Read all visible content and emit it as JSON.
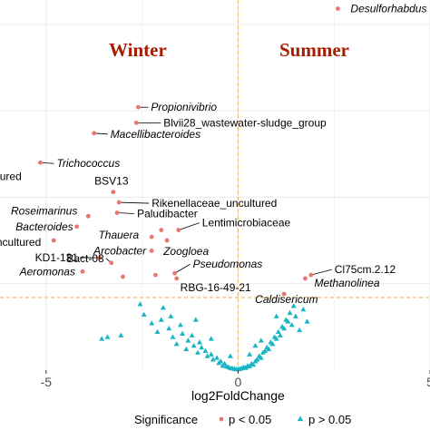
{
  "chart_data": {
    "type": "scatter",
    "xlabel": "log2FoldChange",
    "xlim": [
      -6.2,
      5.0
    ],
    "ylim": [
      0,
      10.7
    ],
    "x_ticks": [
      -5,
      0,
      5
    ],
    "vline_x": 0,
    "hline_y": 2.1,
    "annotations": [
      "Winter",
      "Summer"
    ],
    "legend": {
      "title": "Significance",
      "position": "bottom",
      "entries": [
        "p < 0.05",
        "p > 0.05"
      ]
    },
    "colors": {
      "sig": "#e8776c",
      "nonsig": "#19b5c5",
      "seasons": "#a61c00",
      "ref_lines": "#f3c36b",
      "grid": "#ebebeb"
    },
    "series": [
      {
        "name": "p < 0.05",
        "marker": "circle",
        "points": [
          {
            "x": 2.6,
            "y": 10.45,
            "label": "Desulforhabdus"
          },
          {
            "x": -2.6,
            "y": 7.6,
            "label": "Propionivibrio"
          },
          {
            "x": -2.65,
            "y": 7.15,
            "label": "Blvii28_wastewater-sludge_group"
          },
          {
            "x": -3.75,
            "y": 6.85,
            "label": "Macellibacteroides"
          },
          {
            "x": -5.15,
            "y": 6.0,
            "label": "Trichococcus"
          },
          {
            "x": -6.3,
            "y": 5.6,
            "label": "Chlorobiaceae_uncultured"
          },
          {
            "x": -3.25,
            "y": 5.15,
            "label": "BSV13"
          },
          {
            "x": -3.1,
            "y": 4.85,
            "label": "Rikenellaceae_uncultured"
          },
          {
            "x": -3.15,
            "y": 4.55,
            "label": "Paludibacter"
          },
          {
            "x": -3.9,
            "y": 4.45,
            "label": "Roseimarinus"
          },
          {
            "x": -4.2,
            "y": 4.15,
            "label": "Bacteroides"
          },
          {
            "x": -1.55,
            "y": 4.05,
            "label": "Lentimicrobiaceae"
          },
          {
            "x": -2.0,
            "y": 4.05,
            "label": ""
          },
          {
            "x": -2.25,
            "y": 3.85,
            "label": "Thauera"
          },
          {
            "x": -1.85,
            "y": 3.75,
            "label": "Zoogloea"
          },
          {
            "x": -4.8,
            "y": 3.75,
            "label": "Anaerolineaceae_uncultured"
          },
          {
            "x": -2.25,
            "y": 3.45,
            "label": "Arcobacter"
          },
          {
            "x": -3.6,
            "y": 3.25,
            "label": "KD1-131"
          },
          {
            "x": -3.3,
            "y": 3.1,
            "label": "Bact-08"
          },
          {
            "x": -4.05,
            "y": 2.85,
            "label": "Aeromonas"
          },
          {
            "x": -3.0,
            "y": 2.7,
            "label": ""
          },
          {
            "x": -2.15,
            "y": 2.75,
            "label": ""
          },
          {
            "x": -1.65,
            "y": 2.8,
            "label": "Pseudomonas"
          },
          {
            "x": -1.6,
            "y": 2.65,
            "label": "RBG-16-49-21"
          },
          {
            "x": 1.9,
            "y": 2.75,
            "label": "Cl75cm.2.12"
          },
          {
            "x": 1.75,
            "y": 2.65,
            "label": "Methanolinea"
          },
          {
            "x": 1.2,
            "y": 2.2,
            "label": "Caldisericum"
          }
        ]
      },
      {
        "name": "p > 0.05",
        "marker": "triangle",
        "points": [
          {
            "x": -3.4,
            "y": 0.95
          },
          {
            "x": -3.05,
            "y": 1.0
          },
          {
            "x": -3.55,
            "y": 0.9
          },
          {
            "x": -2.55,
            "y": 1.9
          },
          {
            "x": -2.45,
            "y": 1.6
          },
          {
            "x": -2.25,
            "y": 1.35
          },
          {
            "x": -2.1,
            "y": 1.1
          },
          {
            "x": -2.0,
            "y": 1.45
          },
          {
            "x": -1.95,
            "y": 1.8
          },
          {
            "x": -1.8,
            "y": 1.2
          },
          {
            "x": -1.75,
            "y": 1.55
          },
          {
            "x": -1.7,
            "y": 0.95
          },
          {
            "x": -1.6,
            "y": 0.75
          },
          {
            "x": -1.5,
            "y": 1.3
          },
          {
            "x": -1.45,
            "y": 1.05
          },
          {
            "x": -1.35,
            "y": 0.6
          },
          {
            "x": -1.3,
            "y": 0.85
          },
          {
            "x": -1.2,
            "y": 1.0
          },
          {
            "x": -1.15,
            "y": 0.7
          },
          {
            "x": -1.05,
            "y": 0.5
          },
          {
            "x": -1.0,
            "y": 0.8
          },
          {
            "x": -0.95,
            "y": 0.65
          },
          {
            "x": -0.85,
            "y": 0.55
          },
          {
            "x": -0.8,
            "y": 0.4
          },
          {
            "x": -0.7,
            "y": 0.45
          },
          {
            "x": -0.65,
            "y": 0.3
          },
          {
            "x": -0.55,
            "y": 0.35
          },
          {
            "x": -0.5,
            "y": 0.2
          },
          {
            "x": -0.45,
            "y": 0.25
          },
          {
            "x": -0.4,
            "y": 0.12
          },
          {
            "x": -0.35,
            "y": 0.18
          },
          {
            "x": -0.3,
            "y": 0.1
          },
          {
            "x": -0.25,
            "y": 0.08
          },
          {
            "x": -0.2,
            "y": 0.05
          },
          {
            "x": -0.15,
            "y": 0.05
          },
          {
            "x": -0.1,
            "y": 0.03
          },
          {
            "x": -0.05,
            "y": 0.02
          },
          {
            "x": 0.0,
            "y": 0.02
          },
          {
            "x": 0.05,
            "y": 0.03
          },
          {
            "x": 0.1,
            "y": 0.05
          },
          {
            "x": 0.15,
            "y": 0.08
          },
          {
            "x": 0.2,
            "y": 0.06
          },
          {
            "x": 0.25,
            "y": 0.12
          },
          {
            "x": 0.3,
            "y": 0.1
          },
          {
            "x": 0.35,
            "y": 0.18
          },
          {
            "x": 0.4,
            "y": 0.15
          },
          {
            "x": 0.45,
            "y": 0.25
          },
          {
            "x": 0.5,
            "y": 0.3
          },
          {
            "x": 0.55,
            "y": 0.4
          },
          {
            "x": 0.6,
            "y": 0.35
          },
          {
            "x": 0.65,
            "y": 0.5
          },
          {
            "x": 0.7,
            "y": 0.55
          },
          {
            "x": 0.75,
            "y": 0.65
          },
          {
            "x": 0.8,
            "y": 0.6
          },
          {
            "x": 0.85,
            "y": 0.8
          },
          {
            "x": 0.9,
            "y": 0.75
          },
          {
            "x": 0.95,
            "y": 0.95
          },
          {
            "x": 1.0,
            "y": 0.9
          },
          {
            "x": 1.05,
            "y": 1.1
          },
          {
            "x": 1.1,
            "y": 1.0
          },
          {
            "x": 1.15,
            "y": 1.25
          },
          {
            "x": 1.2,
            "y": 1.2
          },
          {
            "x": 1.25,
            "y": 1.45
          },
          {
            "x": 1.3,
            "y": 1.4
          },
          {
            "x": 1.35,
            "y": 1.65
          },
          {
            "x": 1.4,
            "y": 1.3
          },
          {
            "x": 1.45,
            "y": 1.85
          },
          {
            "x": 1.5,
            "y": 1.55
          },
          {
            "x": 1.6,
            "y": 1.15
          },
          {
            "x": 1.7,
            "y": 1.75
          },
          {
            "x": 1.8,
            "y": 1.4
          },
          {
            "x": 0.3,
            "y": 0.45
          },
          {
            "x": -0.2,
            "y": 0.4
          },
          {
            "x": 0.6,
            "y": 0.85
          },
          {
            "x": -0.7,
            "y": 0.9
          },
          {
            "x": 1.0,
            "y": 1.55
          },
          {
            "x": -1.1,
            "y": 1.45
          },
          {
            "x": 0.45,
            "y": 0.7
          }
        ]
      }
    ]
  }
}
